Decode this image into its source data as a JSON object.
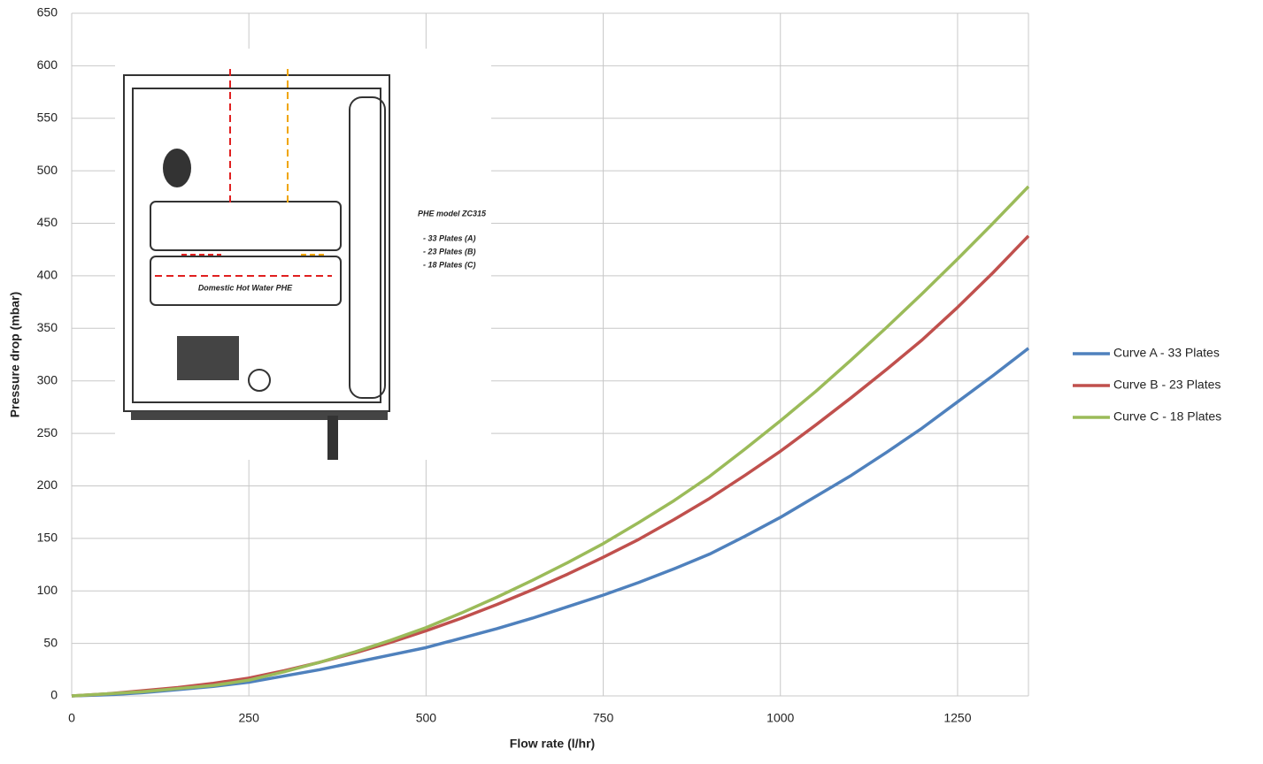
{
  "chart_data": {
    "type": "line",
    "x_label": "Flow rate (l/hr)",
    "y_label": "Pressure drop (mbar)",
    "x": [
      0,
      50,
      100,
      150,
      200,
      250,
      300,
      350,
      400,
      450,
      500,
      550,
      600,
      650,
      700,
      750,
      800,
      850,
      900,
      950,
      1000,
      1050,
      1100,
      1150,
      1200,
      1250,
      1300,
      1350
    ],
    "series": [
      {
        "name": "Curve A - 33 Plates",
        "color": "#4f81bd",
        "values": [
          0,
          1,
          3,
          6,
          9,
          13,
          19,
          25,
          32,
          39,
          46,
          55,
          64,
          74,
          85,
          96,
          108,
          121,
          135,
          152,
          170,
          190,
          210,
          232,
          255,
          280,
          305,
          331
        ]
      },
      {
        "name": "Curve B - 23 Plates",
        "color": "#c0504d",
        "values": [
          0,
          2,
          5,
          8,
          12,
          17,
          24,
          32,
          41,
          51,
          62,
          74,
          87,
          101,
          116,
          132,
          149,
          168,
          188,
          210,
          233,
          258,
          284,
          311,
          339,
          370,
          403,
          438
        ]
      },
      {
        "name": "Curve C - 18 Plates",
        "color": "#9bbb59",
        "values": [
          0,
          2,
          4,
          7,
          10,
          15,
          23,
          32,
          42,
          53,
          65,
          79,
          94,
          110,
          127,
          145,
          165,
          186,
          209,
          235,
          262,
          290,
          320,
          351,
          383,
          416,
          450,
          485
        ]
      }
    ],
    "xlim": [
      0,
      1350
    ],
    "xticks": [
      0,
      250,
      500,
      750,
      1000,
      1250
    ],
    "ylim": [
      0,
      650
    ],
    "yticks": [
      0,
      50,
      100,
      150,
      200,
      250,
      300,
      350,
      400,
      450,
      500,
      550,
      600,
      650
    ],
    "grid": true,
    "legend": "right",
    "annotations": {
      "model": "PHE model ZC315",
      "plates": [
        "- 33 Plates (A)",
        "- 23 Plates (B)",
        "- 18 Plates (C)"
      ],
      "phe": "Domestic Hot Water PHE"
    }
  }
}
